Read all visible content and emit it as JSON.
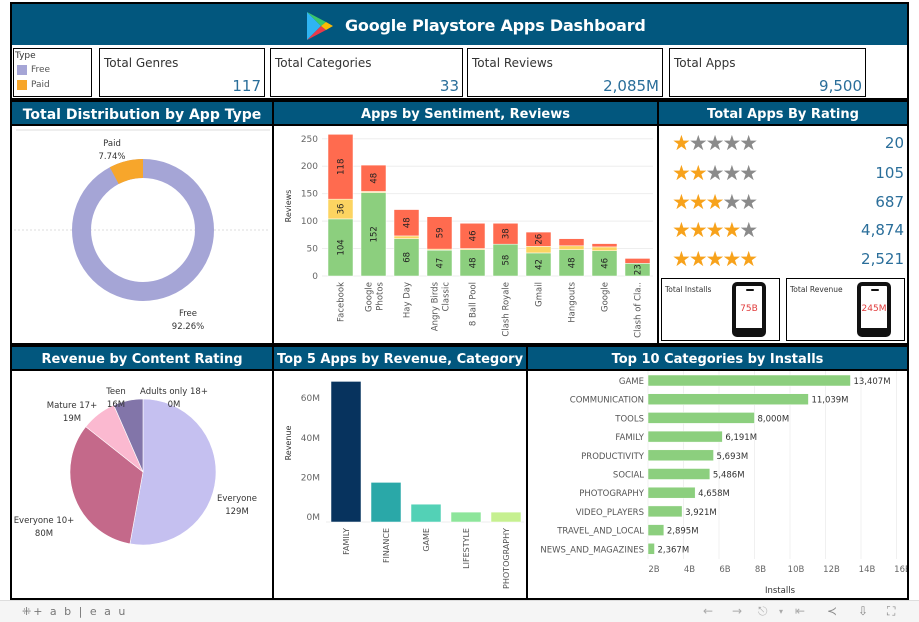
{
  "header": {
    "title": "Google Playstore Apps Dashboard",
    "logo_icon": "google-play-icon"
  },
  "legend": {
    "title": "Type",
    "items": [
      {
        "label": "Free",
        "color": "#a5a5d6"
      },
      {
        "label": "Paid",
        "color": "#f7a62b"
      }
    ]
  },
  "kpis": [
    {
      "label": "Total Genres",
      "value": "117"
    },
    {
      "label": "Total Categories",
      "value": "33"
    },
    {
      "label": "Total Reviews",
      "value": "2,085M"
    },
    {
      "label": "Total Apps",
      "value": "9,500"
    }
  ],
  "panels": {
    "distribution": {
      "title": "Total Distribution by App Type"
    },
    "sentiment": {
      "title": "Apps by Sentiment, Reviews"
    },
    "rating": {
      "title": "Total Apps By Rating"
    },
    "content_rating": {
      "title": "Revenue by Content Rating"
    },
    "top5": {
      "title": "Top 5 Apps by Revenue, Category"
    },
    "top10": {
      "title": "Top 10 Categories by Installs"
    }
  },
  "ratings": [
    {
      "stars": 1,
      "value": "20"
    },
    {
      "stars": 2,
      "value": "105"
    },
    {
      "stars": 3,
      "value": "687"
    },
    {
      "stars": 4,
      "value": "4,874"
    },
    {
      "stars": 5,
      "value": "2,521"
    }
  ],
  "mini_cards": [
    {
      "label": "Total Installs",
      "value": "75B"
    },
    {
      "label": "Total Revenue",
      "value": "245M"
    }
  ],
  "footer": {
    "brand": "+ a b | e a u",
    "icons": [
      "undo-icon",
      "redo-icon",
      "revert-icon",
      "dropdown-icon",
      "reset-icon",
      "share-icon",
      "download-icon",
      "fullscreen-icon"
    ]
  },
  "colors": {
    "header_bg": "#02577e",
    "kpi_value": "#2a6e9a",
    "positive": "#8ccf7e",
    "neutral": "#fcd461",
    "negative": "#ff6b4f",
    "star_on": "#f7a21b",
    "star_off": "#8a8a8a",
    "installs_bar": "#8ccf7e"
  },
  "chart_data": [
    {
      "type": "pie",
      "title": "Total Distribution by App Type",
      "donut": true,
      "categories": [
        "Free",
        "Paid"
      ],
      "values": [
        92.26,
        7.74
      ],
      "labels": [
        "Free\n92.26%",
        "Paid\n7.74%"
      ],
      "colors": [
        "#a5a5d6",
        "#f7a62b"
      ]
    },
    {
      "type": "bar",
      "stacked": true,
      "title": "Apps by Sentiment, Reviews",
      "xlabel": "",
      "ylabel": "Reviews",
      "ylim": [
        0,
        260
      ],
      "yticks": [
        0,
        50,
        100,
        150,
        200,
        250
      ],
      "categories": [
        "Facebook",
        "Google Photos",
        "Hay Day",
        "Angry Birds Classic",
        "8 Ball Pool",
        "Clash Royale",
        "Gmail",
        "Hangouts",
        "Google",
        "Clash of Cla.."
      ],
      "series": [
        {
          "name": "Positive",
          "color": "#8ccf7e",
          "values": [
            104,
            152,
            68,
            47,
            48,
            58,
            42,
            48,
            46,
            23
          ],
          "labels": [
            "104",
            "152",
            "68",
            "47",
            "48",
            "58",
            "42",
            "48",
            "46",
            "23"
          ]
        },
        {
          "name": "Neutral",
          "color": "#fcd461",
          "values": [
            36,
            2,
            5,
            2,
            2,
            0,
            12,
            7,
            7,
            0
          ],
          "labels": [
            "36",
            "",
            "",
            "",
            "",
            "",
            "",
            "",
            "",
            ""
          ]
        },
        {
          "name": "Negative",
          "color": "#ff6b4f",
          "values": [
            118,
            48,
            48,
            59,
            46,
            38,
            26,
            13,
            6,
            9
          ],
          "labels": [
            "118",
            "48",
            "48",
            "59",
            "46",
            "38",
            "26",
            "",
            "",
            ""
          ]
        }
      ]
    },
    {
      "type": "table",
      "title": "Total Apps By Rating",
      "categories": [
        "1 star",
        "2 stars",
        "3 stars",
        "4 stars",
        "5 stars"
      ],
      "values": [
        20,
        105,
        687,
        4874,
        2521
      ]
    },
    {
      "type": "pie",
      "title": "Revenue by Content Rating",
      "categories": [
        "Everyone",
        "Everyone 10+",
        "Mature 17+",
        "Teen",
        "Adults only 18+"
      ],
      "values": [
        129,
        80,
        19,
        16,
        0
      ],
      "labels": [
        "Everyone\n129M",
        "Everyone 10+\n80M",
        "Mature 17+\n19M",
        "Teen\n16M",
        "Adults only 18+\n0M"
      ],
      "colors": [
        "#c5c0f0",
        "#c4698a",
        "#fbb9d0",
        "#8275a9",
        "#8275a9"
      ]
    },
    {
      "type": "bar",
      "title": "Top 5 Apps by Revenue, Category",
      "xlabel": "",
      "ylabel": "Revenue",
      "ylim": [
        0,
        72
      ],
      "yticks": [
        "0M",
        "20M",
        "40M",
        "60M"
      ],
      "categories": [
        "FAMILY",
        "FINANCE",
        "GAME",
        "LIFESTYLE",
        "PHOTOGRAPHY"
      ],
      "values": [
        71,
        20,
        9,
        5,
        5
      ],
      "colors": [
        "#07335e",
        "#2aa8a8",
        "#53d1b6",
        "#8de59b",
        "#c6f090"
      ]
    },
    {
      "type": "bar",
      "orientation": "horizontal",
      "title": "Top 10 Categories by Installs",
      "xlabel": "Installs",
      "ylabel": "",
      "xlim": [
        2,
        16
      ],
      "xticks": [
        "2B",
        "4B",
        "6B",
        "8B",
        "10B",
        "12B",
        "14B",
        "16B"
      ],
      "categories": [
        "GAME",
        "COMMUNICATION",
        "TOOLS",
        "FAMILY",
        "PRODUCTIVITY",
        "SOCIAL",
        "PHOTOGRAPHY",
        "VIDEO_PLAYERS",
        "TRAVEL_AND_LOCAL",
        "NEWS_AND_MAGAZINES"
      ],
      "values": [
        13407,
        11039,
        8000,
        6191,
        5693,
        5486,
        4658,
        3921,
        2895,
        2367
      ],
      "labels": [
        "13,407M",
        "11,039M",
        "8,000M",
        "6,191M",
        "5,693M",
        "5,486M",
        "4,658M",
        "3,921M",
        "2,895M",
        "2,367M"
      ]
    }
  ]
}
